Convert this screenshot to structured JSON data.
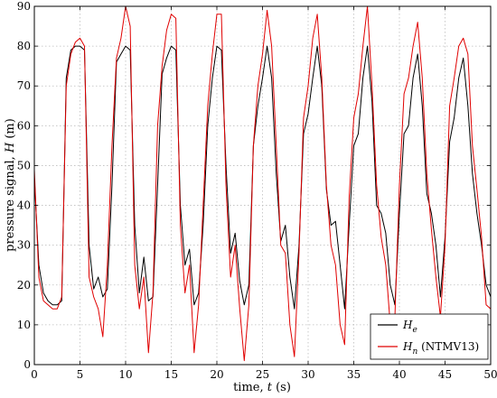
{
  "chart_data": {
    "type": "line",
    "title": "",
    "xlabel_text": "time, ",
    "xlabel_var": "t",
    "xlabel_unit": " (s)",
    "ylabel_text": "pressure signal, ",
    "ylabel_var": "H",
    "ylabel_unit": " (m)",
    "xlim": [
      0,
      50
    ],
    "ylim": [
      0,
      90
    ],
    "xticks": [
      0,
      5,
      10,
      15,
      20,
      25,
      30,
      35,
      40,
      45,
      50
    ],
    "yticks": [
      0,
      10,
      20,
      30,
      40,
      50,
      60,
      70,
      80,
      90
    ],
    "grid": true,
    "legend_position": "bottom-right",
    "series": [
      {
        "name": "H_e",
        "legend_main": "H",
        "legend_sub": "e",
        "legend_suffix": "",
        "color": "#000000",
        "points": [
          [
            0,
            47
          ],
          [
            0.5,
            25
          ],
          [
            1,
            18
          ],
          [
            1.5,
            16
          ],
          [
            2,
            15
          ],
          [
            2.5,
            15
          ],
          [
            3,
            16
          ],
          [
            3.5,
            72
          ],
          [
            4,
            79
          ],
          [
            4.5,
            80
          ],
          [
            5,
            80
          ],
          [
            5.5,
            79
          ],
          [
            6,
            30
          ],
          [
            6.5,
            19
          ],
          [
            7,
            22
          ],
          [
            7.5,
            17
          ],
          [
            8,
            19
          ],
          [
            8.5,
            45
          ],
          [
            9,
            76
          ],
          [
            9.5,
            78
          ],
          [
            10,
            80
          ],
          [
            10.5,
            79
          ],
          [
            11,
            35
          ],
          [
            11.5,
            18
          ],
          [
            12,
            27
          ],
          [
            12.5,
            16
          ],
          [
            13,
            17
          ],
          [
            13.5,
            45
          ],
          [
            14,
            73
          ],
          [
            14.5,
            77
          ],
          [
            15,
            80
          ],
          [
            15.5,
            79
          ],
          [
            16,
            40
          ],
          [
            16.5,
            25
          ],
          [
            17,
            29
          ],
          [
            17.5,
            15
          ],
          [
            18,
            18
          ],
          [
            18.5,
            35
          ],
          [
            19,
            60
          ],
          [
            19.5,
            72
          ],
          [
            20,
            80
          ],
          [
            20.5,
            79
          ],
          [
            21,
            50
          ],
          [
            21.5,
            28
          ],
          [
            22,
            33
          ],
          [
            22.5,
            21
          ],
          [
            23,
            15
          ],
          [
            23.5,
            20
          ],
          [
            24,
            55
          ],
          [
            24.5,
            65
          ],
          [
            25,
            72
          ],
          [
            25.5,
            80
          ],
          [
            26,
            72
          ],
          [
            26.5,
            48
          ],
          [
            27,
            31
          ],
          [
            27.5,
            35
          ],
          [
            28,
            22
          ],
          [
            28.5,
            14
          ],
          [
            29,
            30
          ],
          [
            29.5,
            58
          ],
          [
            30,
            63
          ],
          [
            30.5,
            72
          ],
          [
            31,
            80
          ],
          [
            31.5,
            70
          ],
          [
            32,
            44
          ],
          [
            32.5,
            35
          ],
          [
            33,
            36
          ],
          [
            33.5,
            25
          ],
          [
            34,
            14
          ],
          [
            34.5,
            35
          ],
          [
            35,
            55
          ],
          [
            35.5,
            58
          ],
          [
            36,
            72
          ],
          [
            36.5,
            80
          ],
          [
            37,
            66
          ],
          [
            37.5,
            40
          ],
          [
            38,
            38
          ],
          [
            38.5,
            33
          ],
          [
            39,
            20
          ],
          [
            39.5,
            15
          ],
          [
            40,
            38
          ],
          [
            40.5,
            58
          ],
          [
            41,
            60
          ],
          [
            41.5,
            72
          ],
          [
            42,
            78
          ],
          [
            42.5,
            65
          ],
          [
            43,
            43
          ],
          [
            43.5,
            38
          ],
          [
            44,
            30
          ],
          [
            44.5,
            17
          ],
          [
            45,
            32
          ],
          [
            45.5,
            56
          ],
          [
            46,
            62
          ],
          [
            46.5,
            72
          ],
          [
            47,
            77
          ],
          [
            47.5,
            65
          ],
          [
            48,
            48
          ],
          [
            48.5,
            38
          ],
          [
            49,
            30
          ],
          [
            49.5,
            20
          ],
          [
            50,
            17
          ]
        ]
      },
      {
        "name": "H_n (NTMV13)",
        "legend_main": "H",
        "legend_sub": "n",
        "legend_suffix": " (NTMV13)",
        "color": "#e00000",
        "points": [
          [
            0,
            49
          ],
          [
            0.5,
            22
          ],
          [
            1,
            16
          ],
          [
            1.5,
            15
          ],
          [
            2,
            14
          ],
          [
            2.5,
            14
          ],
          [
            3,
            17
          ],
          [
            3.5,
            70
          ],
          [
            4,
            78
          ],
          [
            4.5,
            81
          ],
          [
            5,
            82
          ],
          [
            5.5,
            80
          ],
          [
            6,
            22
          ],
          [
            6.5,
            17
          ],
          [
            7,
            14
          ],
          [
            7.5,
            7
          ],
          [
            8,
            25
          ],
          [
            8.5,
            55
          ],
          [
            9,
            77
          ],
          [
            9.5,
            82
          ],
          [
            10,
            90
          ],
          [
            10.5,
            85
          ],
          [
            11,
            25
          ],
          [
            11.5,
            14
          ],
          [
            12,
            22
          ],
          [
            12.5,
            3
          ],
          [
            13,
            18
          ],
          [
            13.5,
            60
          ],
          [
            14,
            75
          ],
          [
            14.5,
            84
          ],
          [
            15,
            88
          ],
          [
            15.5,
            87
          ],
          [
            16,
            35
          ],
          [
            16.5,
            18
          ],
          [
            17,
            25
          ],
          [
            17.5,
            3
          ],
          [
            18,
            15
          ],
          [
            18.5,
            40
          ],
          [
            19,
            65
          ],
          [
            19.5,
            78
          ],
          [
            20,
            88
          ],
          [
            20.5,
            88
          ],
          [
            21,
            45
          ],
          [
            21.5,
            22
          ],
          [
            22,
            30
          ],
          [
            22.5,
            14
          ],
          [
            23,
            1
          ],
          [
            23.5,
            15
          ],
          [
            24,
            55
          ],
          [
            24.5,
            70
          ],
          [
            25,
            78
          ],
          [
            25.5,
            89
          ],
          [
            26,
            80
          ],
          [
            26.5,
            55
          ],
          [
            27,
            30
          ],
          [
            27.5,
            28
          ],
          [
            28,
            10
          ],
          [
            28.5,
            2
          ],
          [
            29,
            28
          ],
          [
            29.5,
            62
          ],
          [
            30,
            70
          ],
          [
            30.5,
            82
          ],
          [
            31,
            88
          ],
          [
            31.5,
            72
          ],
          [
            32,
            45
          ],
          [
            32.5,
            30
          ],
          [
            33,
            25
          ],
          [
            33.5,
            10
          ],
          [
            34,
            5
          ],
          [
            34.5,
            42
          ],
          [
            35,
            62
          ],
          [
            35.5,
            68
          ],
          [
            36,
            80
          ],
          [
            36.5,
            90
          ],
          [
            37,
            70
          ],
          [
            37.5,
            45
          ],
          [
            38,
            32
          ],
          [
            38.5,
            25
          ],
          [
            39,
            10
          ],
          [
            39.5,
            12
          ],
          [
            40,
            45
          ],
          [
            40.5,
            68
          ],
          [
            41,
            72
          ],
          [
            41.5,
            80
          ],
          [
            42,
            86
          ],
          [
            42.5,
            72
          ],
          [
            43,
            48
          ],
          [
            43.5,
            34
          ],
          [
            44,
            22
          ],
          [
            44.5,
            12
          ],
          [
            45,
            30
          ],
          [
            45.5,
            65
          ],
          [
            46,
            72
          ],
          [
            46.5,
            80
          ],
          [
            47,
            82
          ],
          [
            47.5,
            78
          ],
          [
            48,
            55
          ],
          [
            48.5,
            44
          ],
          [
            49,
            32
          ],
          [
            49.5,
            15
          ],
          [
            50,
            14
          ]
        ]
      }
    ]
  }
}
